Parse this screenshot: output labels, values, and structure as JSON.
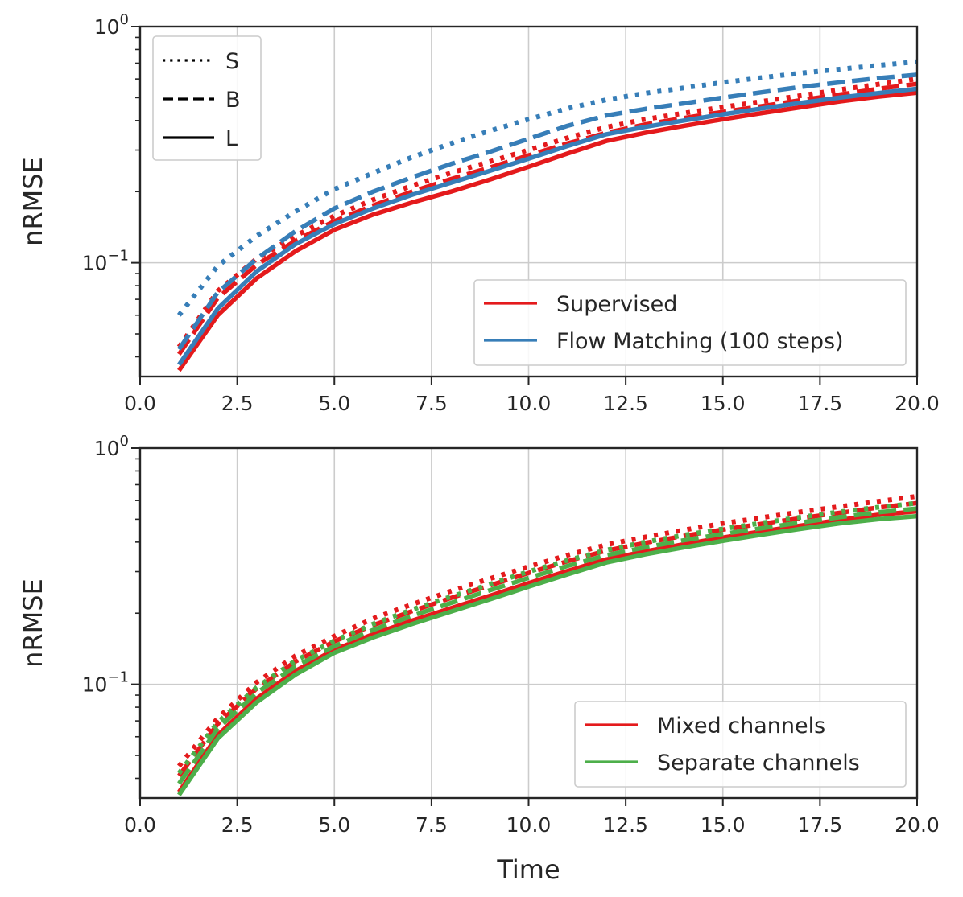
{
  "chart_data": [
    {
      "type": "line",
      "title": "",
      "xlabel": "",
      "ylabel": "nRMSE",
      "xlim": [
        0,
        20
      ],
      "ylim": [
        0.033,
        1.0
      ],
      "yscale": "log",
      "grid": true,
      "x_ticks": [
        "0.0",
        "2.5",
        "5.0",
        "7.5",
        "10.0",
        "12.5",
        "15.0",
        "17.5",
        "20.0"
      ],
      "y_tick_labels": [
        {
          "base": "10",
          "exp": "0"
        },
        {
          "base": "10",
          "exp": "−1"
        }
      ],
      "x": [
        1,
        2,
        3,
        4,
        5,
        6,
        7,
        8,
        9,
        10,
        11,
        12,
        13,
        14,
        15,
        16,
        17,
        18,
        19,
        20
      ],
      "style_legend": {
        "position": "upper-left",
        "entries": [
          {
            "label": "S",
            "dash": "dotted"
          },
          {
            "label": "B",
            "dash": "dashed"
          },
          {
            "label": "L",
            "dash": "solid"
          }
        ]
      },
      "color_legend": {
        "position": "lower-right",
        "entries": [
          {
            "label": "Supervised",
            "color": "#e41a1c"
          },
          {
            "label": "Flow Matching (100 steps)",
            "color": "#377eb8"
          }
        ]
      },
      "series": [
        {
          "name": "Supervised S",
          "color": "#e41a1c",
          "dash": "dotted",
          "values": [
            0.044,
            0.076,
            0.104,
            0.13,
            0.158,
            0.185,
            0.212,
            0.24,
            0.268,
            0.3,
            0.338,
            0.375,
            0.405,
            0.43,
            0.456,
            0.482,
            0.51,
            0.54,
            0.57,
            0.6
          ]
        },
        {
          "name": "Supervised B",
          "color": "#e41a1c",
          "dash": "dashed",
          "values": [
            0.041,
            0.071,
            0.098,
            0.124,
            0.15,
            0.175,
            0.2,
            0.226,
            0.253,
            0.285,
            0.32,
            0.355,
            0.385,
            0.41,
            0.435,
            0.46,
            0.488,
            0.515,
            0.545,
            0.572
          ]
        },
        {
          "name": "Supervised L",
          "color": "#e41a1c",
          "dash": "solid",
          "values": [
            0.035,
            0.06,
            0.086,
            0.112,
            0.138,
            0.16,
            0.18,
            0.2,
            0.225,
            0.255,
            0.29,
            0.328,
            0.355,
            0.38,
            0.405,
            0.43,
            0.455,
            0.482,
            0.505,
            0.525
          ]
        },
        {
          "name": "Flow Matching S",
          "color": "#377eb8",
          "dash": "dotted",
          "values": [
            0.06,
            0.097,
            0.13,
            0.165,
            0.205,
            0.24,
            0.28,
            0.32,
            0.362,
            0.405,
            0.45,
            0.49,
            0.522,
            0.55,
            0.58,
            0.608,
            0.635,
            0.66,
            0.685,
            0.71
          ]
        },
        {
          "name": "Flow Matching B",
          "color": "#377eb8",
          "dash": "dashed",
          "values": [
            0.043,
            0.075,
            0.104,
            0.136,
            0.17,
            0.2,
            0.23,
            0.262,
            0.295,
            0.335,
            0.38,
            0.42,
            0.448,
            0.473,
            0.5,
            0.527,
            0.555,
            0.58,
            0.605,
            0.625
          ]
        },
        {
          "name": "Flow Matching L",
          "color": "#377eb8",
          "dash": "solid",
          "values": [
            0.037,
            0.064,
            0.092,
            0.12,
            0.146,
            0.17,
            0.194,
            0.218,
            0.245,
            0.276,
            0.312,
            0.35,
            0.376,
            0.4,
            0.425,
            0.45,
            0.475,
            0.5,
            0.523,
            0.545
          ]
        }
      ]
    },
    {
      "type": "line",
      "title": "",
      "xlabel": "Time",
      "ylabel": "nRMSE",
      "xlim": [
        0,
        20
      ],
      "ylim": [
        0.033,
        1.0
      ],
      "yscale": "log",
      "grid": true,
      "x_ticks": [
        "0.0",
        "2.5",
        "5.0",
        "7.5",
        "10.0",
        "12.5",
        "15.0",
        "17.5",
        "20.0"
      ],
      "y_tick_labels": [
        {
          "base": "10",
          "exp": "0"
        },
        {
          "base": "10",
          "exp": "−1"
        }
      ],
      "x": [
        1,
        2,
        3,
        4,
        5,
        6,
        7,
        8,
        9,
        10,
        11,
        12,
        13,
        14,
        15,
        16,
        17,
        18,
        19,
        20
      ],
      "color_legend": {
        "position": "lower-right",
        "entries": [
          {
            "label": "Mixed channels",
            "color": "#e41a1c"
          },
          {
            "label": "Separate channels",
            "color": "#4daf4a"
          }
        ]
      },
      "series": [
        {
          "name": "Mixed channels S",
          "color": "#e41a1c",
          "dash": "dotted",
          "values": [
            0.045,
            0.072,
            0.102,
            0.132,
            0.16,
            0.19,
            0.218,
            0.248,
            0.28,
            0.315,
            0.352,
            0.39,
            0.42,
            0.45,
            0.48,
            0.508,
            0.537,
            0.565,
            0.595,
            0.625
          ]
        },
        {
          "name": "Mixed channels B",
          "color": "#e41a1c",
          "dash": "dashed",
          "values": [
            0.041,
            0.068,
            0.096,
            0.125,
            0.152,
            0.178,
            0.204,
            0.232,
            0.262,
            0.296,
            0.332,
            0.368,
            0.397,
            0.425,
            0.452,
            0.478,
            0.505,
            0.532,
            0.56,
            0.585
          ]
        },
        {
          "name": "Mixed channels L",
          "color": "#e41a1c",
          "dash": "solid",
          "values": [
            0.035,
            0.061,
            0.087,
            0.114,
            0.14,
            0.163,
            0.186,
            0.21,
            0.237,
            0.268,
            0.302,
            0.338,
            0.365,
            0.392,
            0.418,
            0.444,
            0.47,
            0.496,
            0.522,
            0.54
          ]
        },
        {
          "name": "Separate channels S",
          "color": "#4daf4a",
          "dash": "dotted",
          "values": [
            0.042,
            0.069,
            0.097,
            0.126,
            0.153,
            0.18,
            0.207,
            0.235,
            0.265,
            0.3,
            0.335,
            0.37,
            0.4,
            0.428,
            0.455,
            0.482,
            0.51,
            0.537,
            0.562,
            0.585
          ]
        },
        {
          "name": "Separate channels B",
          "color": "#4daf4a",
          "dash": "dashed",
          "values": [
            0.038,
            0.065,
            0.092,
            0.119,
            0.145,
            0.17,
            0.195,
            0.221,
            0.25,
            0.282,
            0.317,
            0.352,
            0.38,
            0.407,
            0.433,
            0.458,
            0.484,
            0.51,
            0.535,
            0.555
          ]
        },
        {
          "name": "Separate channels L",
          "color": "#4daf4a",
          "dash": "solid",
          "values": [
            0.034,
            0.059,
            0.084,
            0.11,
            0.136,
            0.158,
            0.18,
            0.203,
            0.229,
            0.259,
            0.292,
            0.328,
            0.355,
            0.38,
            0.405,
            0.43,
            0.455,
            0.48,
            0.5,
            0.515
          ]
        }
      ]
    }
  ]
}
